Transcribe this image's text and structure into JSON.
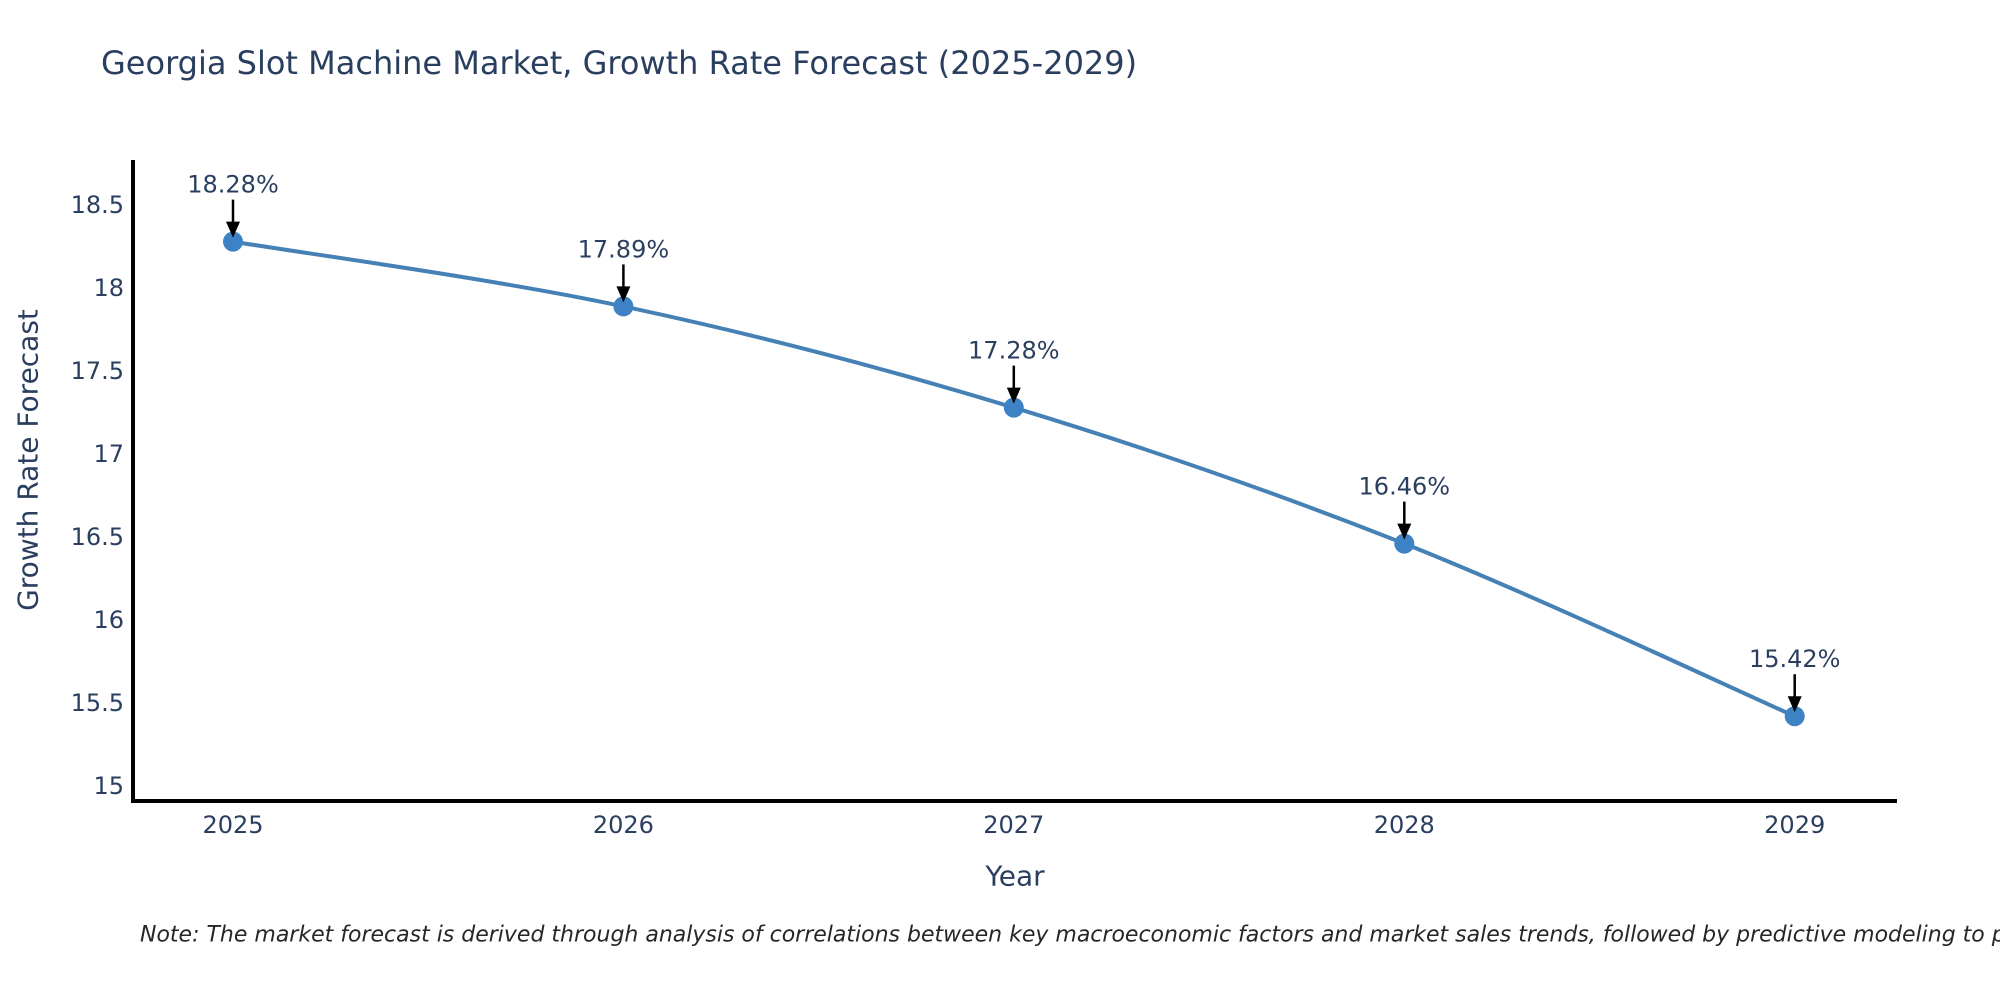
{
  "figure": {
    "title": "Georgia Slot Machine Market, Growth Rate Forecast (2025-2029)",
    "footnote": "Note: The market forecast is derived through analysis of correlations between key macroeconomic factors and market sales trends, followed by predictive modeling to project future sal"
  },
  "chart_data": {
    "type": "line",
    "title": "Georgia Slot Machine Market, Growth Rate Forecast (2025-2029)",
    "xlabel": "Year",
    "ylabel": "Growth Rate Forecast",
    "x": [
      2025,
      2026,
      2027,
      2028,
      2029
    ],
    "values": [
      18.28,
      17.89,
      17.28,
      16.46,
      15.42
    ],
    "point_labels": [
      "18.28%",
      "17.89%",
      "17.28%",
      "16.46%",
      "15.42%"
    ],
    "xticks": [
      2025,
      2026,
      2027,
      2028,
      2029
    ],
    "xtick_labels": [
      "2025",
      "2026",
      "2027",
      "2028",
      "2029"
    ],
    "yticks": [
      15,
      15.5,
      16,
      16.5,
      17,
      17.5,
      18,
      18.5
    ],
    "ytick_labels": [
      "15",
      "15.5",
      "16",
      "16.5",
      "17",
      "17.5",
      "18",
      "18.5"
    ],
    "xlim": [
      2024.744,
      2029.262
    ],
    "ylim": [
      14.909,
      18.772
    ],
    "grid": false,
    "line_shape": "spline",
    "colors": {
      "line": "#4581b5",
      "marker": "#3d82c4",
      "axis": "#000000",
      "tick_text": "#2a3f5f",
      "annotation_text": "#2a3f5f",
      "arrow": "#000000",
      "background": "#ffffff"
    }
  }
}
